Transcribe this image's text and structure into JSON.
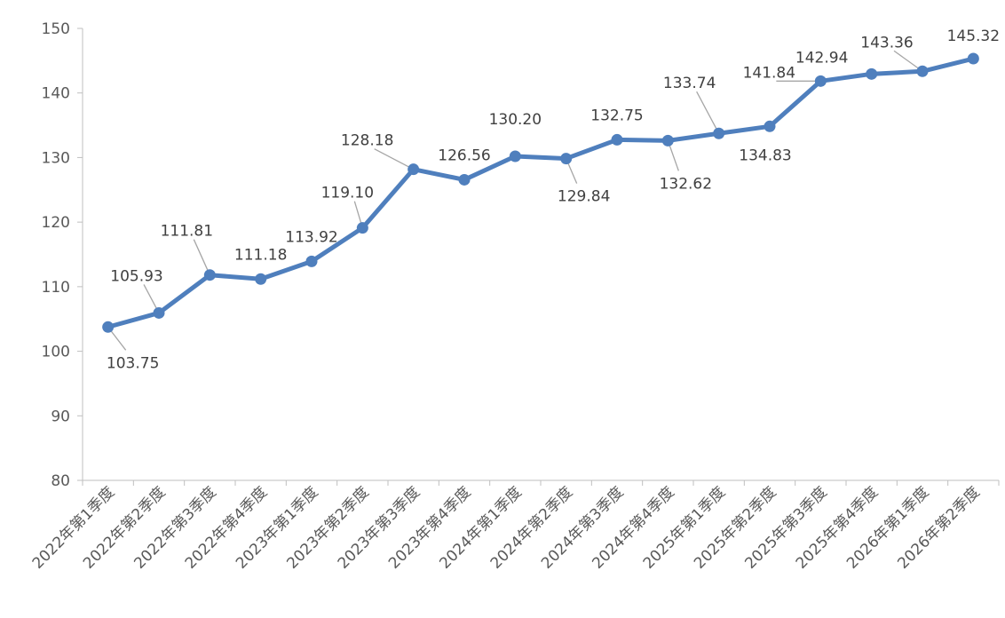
{
  "chart_data": {
    "type": "line",
    "title": "",
    "xlabel": "",
    "ylabel": "",
    "ylim": [
      80,
      150
    ],
    "yticks": [
      80,
      90,
      100,
      110,
      120,
      130,
      140,
      150
    ],
    "grid": false,
    "legend": "none",
    "line_color": "#4f7fbd",
    "categories": [
      "2022年第1季度",
      "2022年第2季度",
      "2022年第3季度",
      "2022年第4季度",
      "2023年第1季度",
      "2023年第2季度",
      "2023年第3季度",
      "2023年第4季度",
      "2024年第1季度",
      "2024年第2季度",
      "2024年第3季度",
      "2024年第4季度",
      "2025年第1季度",
      "2025年第2季度",
      "2025年第3季度",
      "2025年第4季度",
      "2026年第1季度",
      "2026年第2季度"
    ],
    "values": [
      103.75,
      105.93,
      111.81,
      111.18,
      113.92,
      119.1,
      128.18,
      126.56,
      130.2,
      129.84,
      132.75,
      132.62,
      133.74,
      134.83,
      141.84,
      142.94,
      143.36,
      145.32
    ],
    "data_labels": [
      "103.75",
      "105.93",
      "111.81",
      "111.18",
      "113.92",
      "119.10",
      "128.18",
      "126.56",
      "130.20",
      "129.84",
      "132.75",
      "132.62",
      "133.74",
      "134.83",
      "141.84",
      "142.94",
      "143.36",
      "145.32"
    ]
  }
}
